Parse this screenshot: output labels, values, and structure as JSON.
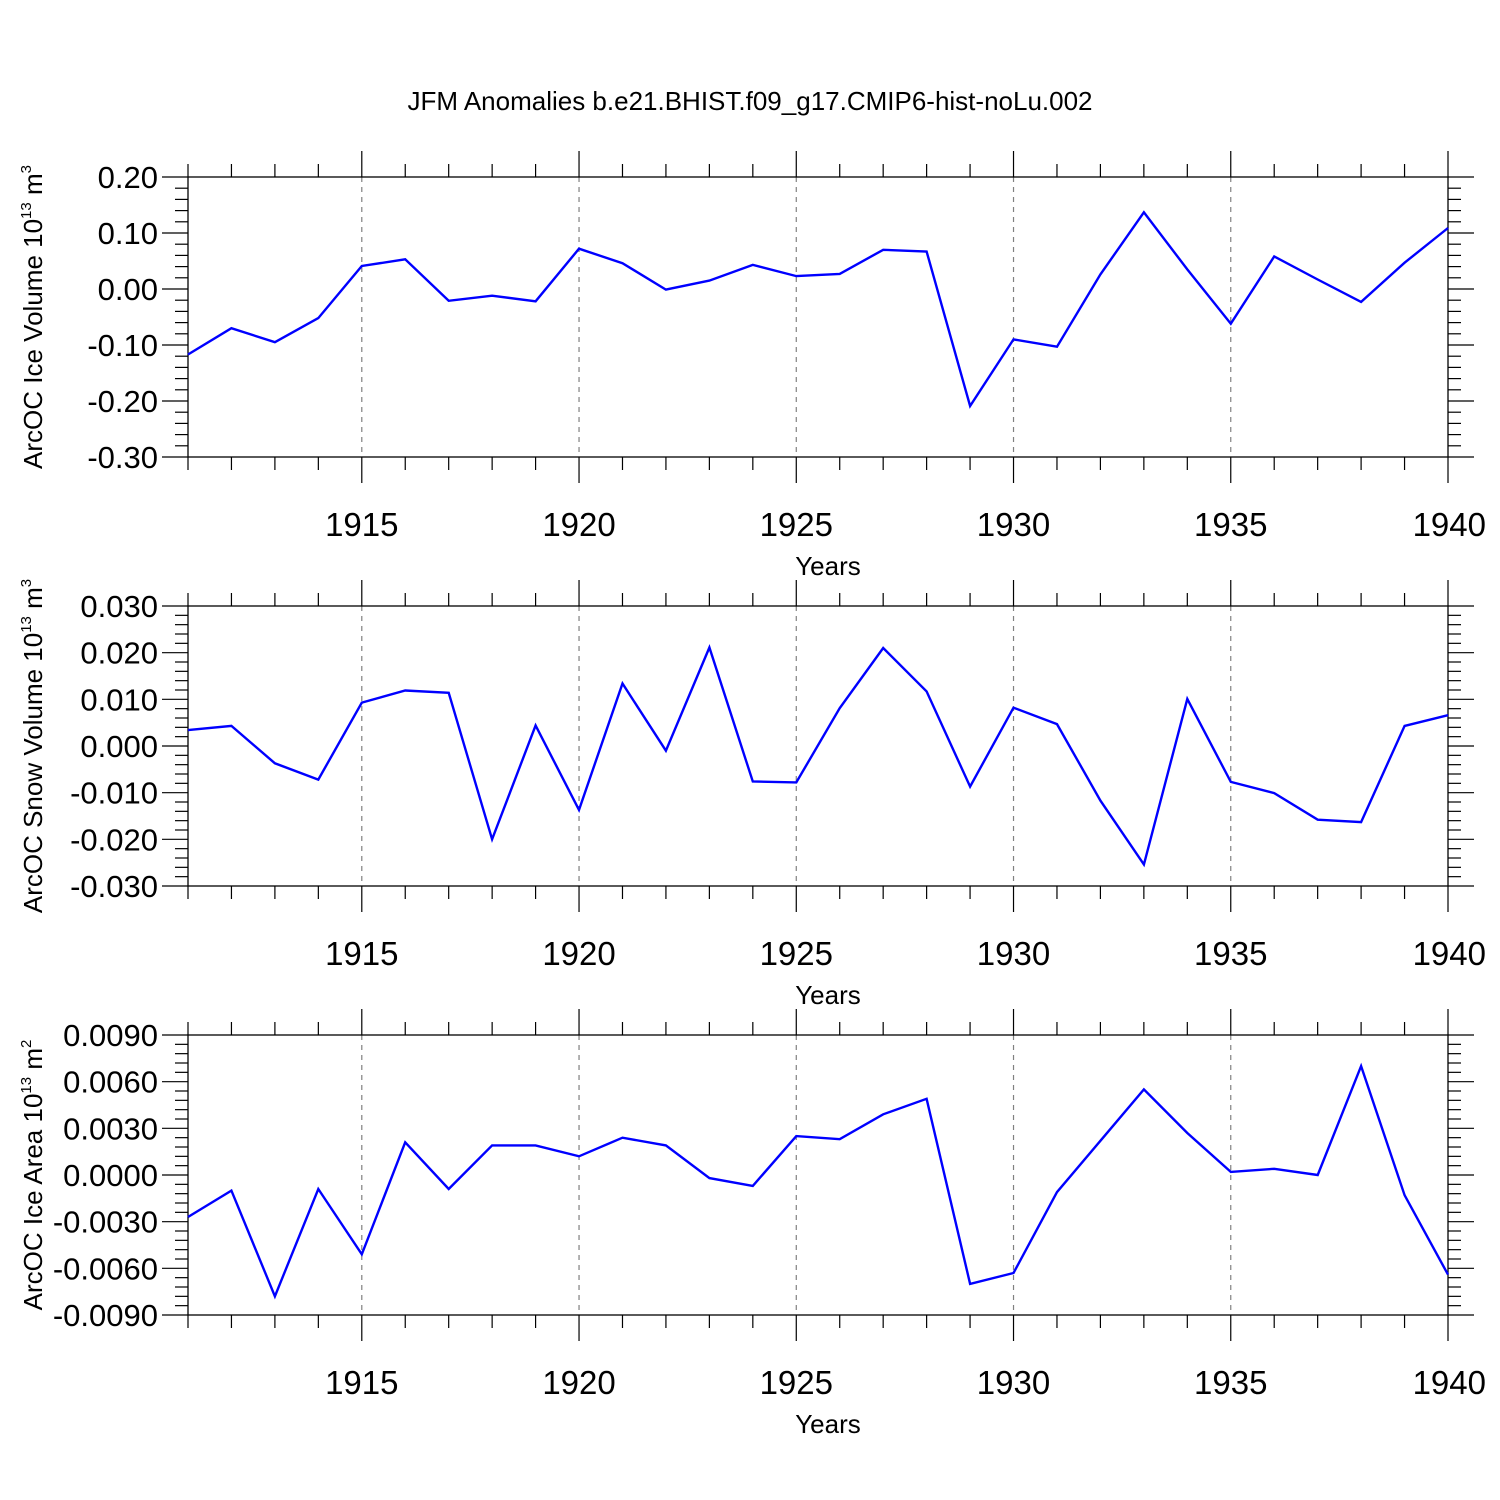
{
  "title": "JFM Anomalies b.e21.BHIST.f09_g17.CMIP6-hist-noLu.002",
  "colors": {
    "line": "#0000ff",
    "axis": "#000000",
    "grid": "#808080"
  },
  "chart_data": [
    {
      "type": "line",
      "name": "ice-volume",
      "ylabel": {
        "main": "ArcOC Ice Volume 10",
        "exp": "13",
        "unit": " m",
        "unit_exp": "3"
      },
      "xlabel": "Years",
      "xlim": [
        1911,
        1940
      ],
      "ylim": [
        -0.3,
        0.2
      ],
      "yticks": [
        -0.3,
        -0.2,
        -0.1,
        0.0,
        0.1,
        0.2
      ],
      "ytick_labels": [
        "-0.30",
        "-0.20",
        "-0.10",
        "0.00",
        "0.10",
        "0.20"
      ],
      "xticks": [
        1915,
        1920,
        1925,
        1930,
        1935,
        1940
      ],
      "xtick_labels": [
        "1915",
        "1920",
        "1925",
        "1930",
        "1935",
        "1940"
      ],
      "x": [
        1911,
        1912,
        1913,
        1914,
        1915,
        1916,
        1917,
        1918,
        1919,
        1920,
        1921,
        1922,
        1923,
        1924,
        1925,
        1926,
        1927,
        1928,
        1929,
        1930,
        1931,
        1932,
        1933,
        1934,
        1935,
        1936,
        1937,
        1938,
        1939,
        1940
      ],
      "values": [
        -0.117,
        -0.07,
        -0.095,
        -0.052,
        0.041,
        0.053,
        -0.021,
        -0.012,
        -0.022,
        0.072,
        0.046,
        -0.001,
        0.015,
        0.043,
        0.023,
        0.027,
        0.07,
        0.067,
        -0.209,
        -0.09,
        -0.103,
        0.026,
        0.137,
        0.035,
        -0.062,
        0.058,
        0.017,
        -0.023,
        0.047,
        0.109
      ]
    },
    {
      "type": "line",
      "name": "snow-volume",
      "ylabel": {
        "main": "ArcOC Snow Volume 10",
        "exp": "13",
        "unit": " m",
        "unit_exp": "3"
      },
      "xlabel": "Years",
      "xlim": [
        1911,
        1940
      ],
      "ylim": [
        -0.03,
        0.03
      ],
      "yticks": [
        -0.03,
        -0.02,
        -0.01,
        0.0,
        0.01,
        0.02,
        0.03
      ],
      "ytick_labels": [
        "-0.030",
        "-0.020",
        "-0.010",
        "0.000",
        "0.010",
        "0.020",
        "0.030"
      ],
      "xticks": [
        1915,
        1920,
        1925,
        1930,
        1935,
        1940
      ],
      "xtick_labels": [
        "1915",
        "1920",
        "1925",
        "1930",
        "1935",
        "1940"
      ],
      "x": [
        1911,
        1912,
        1913,
        1914,
        1915,
        1916,
        1917,
        1918,
        1919,
        1920,
        1921,
        1922,
        1923,
        1924,
        1925,
        1926,
        1927,
        1928,
        1929,
        1930,
        1931,
        1932,
        1933,
        1934,
        1935,
        1936,
        1937,
        1938,
        1939,
        1940
      ],
      "values": [
        0.0034,
        0.0043,
        -0.0037,
        -0.0072,
        0.0093,
        0.0119,
        0.0114,
        -0.02,
        0.0044,
        -0.0137,
        0.0134,
        -0.001,
        0.0211,
        -0.0076,
        -0.0078,
        0.0081,
        0.021,
        0.0117,
        -0.0087,
        0.0082,
        0.0047,
        -0.0117,
        -0.0254,
        0.0101,
        -0.0077,
        -0.0101,
        -0.0158,
        -0.0163,
        0.0043,
        0.0066
      ]
    },
    {
      "type": "line",
      "name": "ice-area",
      "ylabel": {
        "main": "ArcOC Ice Area 10",
        "exp": "13",
        "unit": " m",
        "unit_exp": "2"
      },
      "xlabel": "Years",
      "xlim": [
        1911,
        1940
      ],
      "ylim": [
        -0.009,
        0.009
      ],
      "yticks": [
        -0.009,
        -0.006,
        -0.003,
        0.0,
        0.003,
        0.006,
        0.009
      ],
      "ytick_labels": [
        "-0.0090",
        "-0.0060",
        "-0.0030",
        "0.0000",
        "0.0030",
        "0.0060",
        "0.0090"
      ],
      "xticks": [
        1915,
        1920,
        1925,
        1930,
        1935,
        1940
      ],
      "xtick_labels": [
        "1915",
        "1920",
        "1925",
        "1930",
        "1935",
        "1940"
      ],
      "x": [
        1911,
        1912,
        1913,
        1914,
        1915,
        1916,
        1917,
        1918,
        1919,
        1920,
        1921,
        1922,
        1923,
        1924,
        1925,
        1926,
        1927,
        1928,
        1929,
        1930,
        1931,
        1932,
        1933,
        1934,
        1935,
        1936,
        1937,
        1938,
        1939,
        1940
      ],
      "values": [
        -0.0027,
        -0.001,
        -0.0078,
        -0.0009,
        -0.0051,
        0.0021,
        -0.0009,
        0.0019,
        0.0019,
        0.0012,
        0.0024,
        0.0019,
        -0.0002,
        -0.0007,
        0.0025,
        0.0023,
        0.0039,
        0.0049,
        -0.007,
        -0.0063,
        -0.0011,
        0.0022,
        0.0055,
        0.0027,
        0.0002,
        0.0004,
        0.0,
        0.007,
        -0.0013,
        -0.0064
      ]
    }
  ]
}
